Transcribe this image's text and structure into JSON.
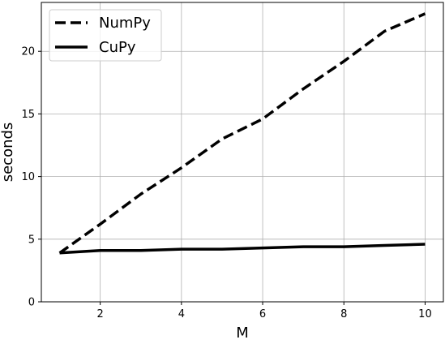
{
  "chart_data": {
    "type": "line",
    "title": "",
    "xlabel": "M",
    "ylabel": "seconds",
    "xlim": [
      0.55,
      10.45
    ],
    "ylim": [
      0,
      23.9
    ],
    "xticks": [
      2,
      4,
      6,
      8,
      10
    ],
    "yticks": [
      0,
      5,
      10,
      15,
      20
    ],
    "grid": true,
    "legend_position": "top-left",
    "x": [
      1,
      2,
      3,
      4,
      5,
      6,
      7,
      8,
      9,
      10
    ],
    "series": [
      {
        "name": "NumPy",
        "style": "dashed",
        "color": "#000000",
        "values": [
          3.9,
          6.2,
          8.6,
          10.7,
          13.0,
          14.6,
          17.0,
          19.2,
          21.6,
          23.0
        ]
      },
      {
        "name": "CuPy",
        "style": "solid",
        "color": "#000000",
        "values": [
          3.9,
          4.1,
          4.1,
          4.2,
          4.2,
          4.3,
          4.4,
          4.4,
          4.5,
          4.6
        ]
      }
    ]
  }
}
